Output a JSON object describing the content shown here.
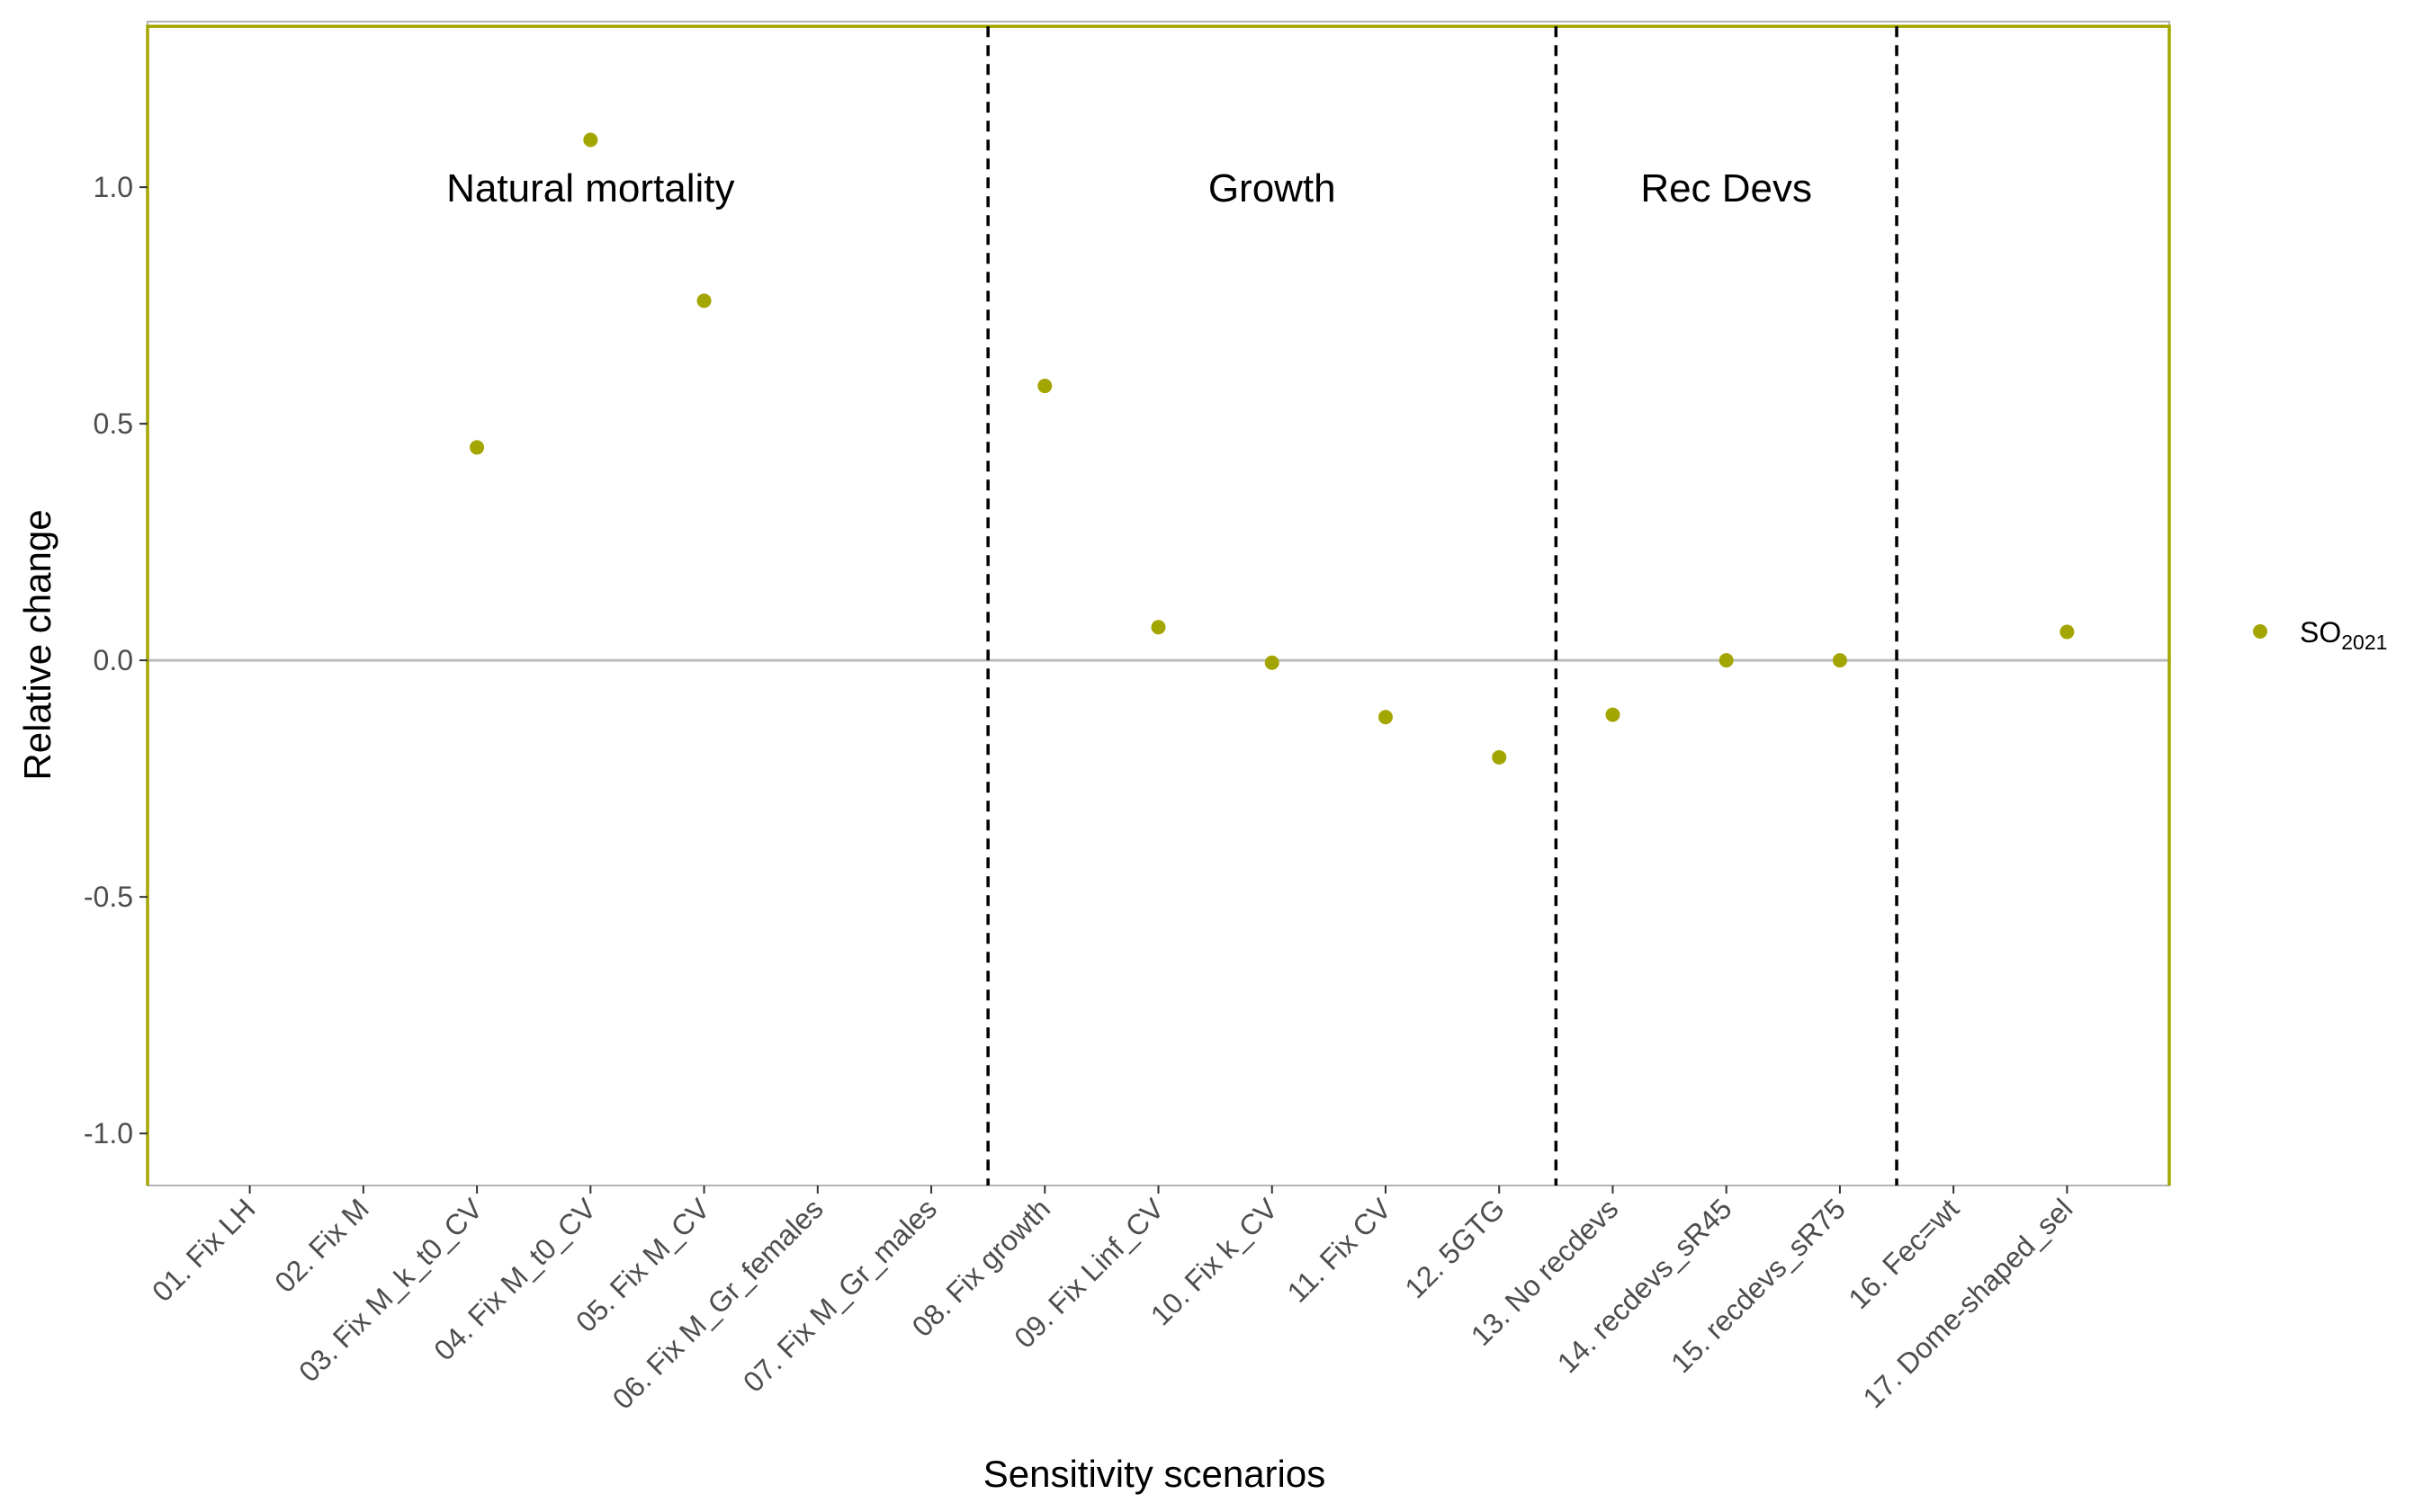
{
  "chart_data": {
    "type": "scatter",
    "xlabel": "Sensitivity scenarios",
    "ylabel": "Relative change",
    "ylim": [
      -1.11,
      1.35
    ],
    "yticks": [
      -1.0,
      -0.5,
      0.0,
      0.5,
      1.0
    ],
    "ytick_labels": [
      "-1.0",
      "-0.5",
      "0.0",
      "0.5",
      "1.0"
    ],
    "categories": [
      "01. Fix LH",
      "02. Fix M",
      "03. Fix M_k_t0_CV",
      "04. Fix M_t0_CV",
      "05. Fix M_CV",
      "06. Fix M_Gr_females",
      "07. Fix M_Gr_males",
      "08. Fix growth",
      "09. Fix Linf_CV",
      "10. Fix k_CV",
      "11. Fix CV",
      "12. 5GTG",
      "13. No recdevs",
      "14. recdevs_sR45",
      "15. recdevs_sR75",
      "16. Fec=wt",
      "17. Dome-shaped_sel"
    ],
    "series": [
      {
        "name": "SO2021",
        "color": "#a3a500",
        "values": [
          null,
          null,
          0.45,
          1.1,
          0.76,
          null,
          null,
          0.58,
          0.07,
          -0.005,
          -0.12,
          -0.205,
          -0.115,
          0.0,
          0.0,
          null,
          0.06
        ]
      }
    ],
    "groups": [
      {
        "label": "Natural mortality",
        "label_x_category": 4
      },
      {
        "label": "Growth",
        "label_x_category": 10
      },
      {
        "label": "Rec Devs",
        "label_x_category": 14
      }
    ],
    "group_label_y": 1.0,
    "dividers_after_category": [
      7.5,
      12.5,
      15.5
    ],
    "outline_box": {
      "x_from": 0.1,
      "x_to": 17.9,
      "y_top": 1.34,
      "color": "#a3a500"
    },
    "zero_line": 0.0,
    "legend": {
      "position": "right",
      "label_main": "SO",
      "label_sub": "2021"
    },
    "grid": false
  }
}
